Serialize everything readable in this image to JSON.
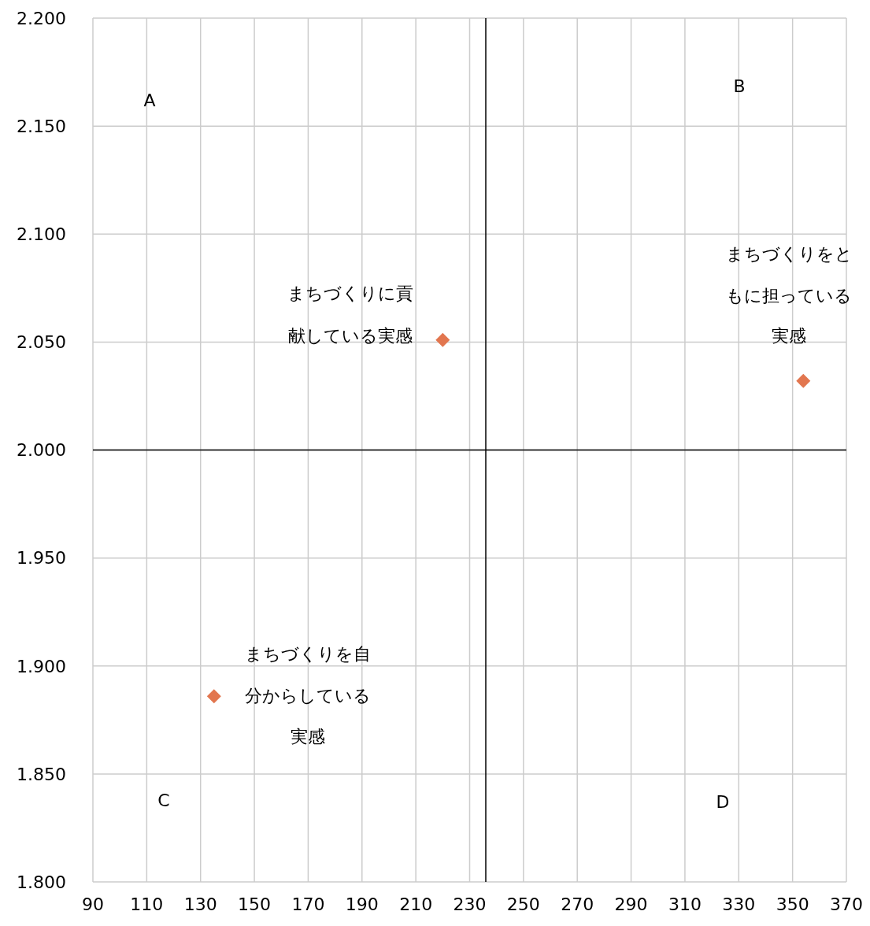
{
  "chart_data": {
    "type": "scatter",
    "marker": "diamond",
    "legend": false,
    "grid": true,
    "xlim": [
      90,
      370
    ],
    "xticks": [
      90,
      110,
      130,
      150,
      170,
      190,
      210,
      230,
      250,
      270,
      290,
      310,
      330,
      350,
      370
    ],
    "ylim": [
      1.8,
      2.2
    ],
    "yticks": [
      {
        "value": 1.8,
        "label": "1.800"
      },
      {
        "value": 1.85,
        "label": "1.850"
      },
      {
        "value": 1.9,
        "label": "1.900"
      },
      {
        "value": 1.95,
        "label": "1.950"
      },
      {
        "value": 2.0,
        "label": "2.000"
      },
      {
        "value": 2.05,
        "label": "2.050"
      },
      {
        "value": 2.1,
        "label": "2.100"
      },
      {
        "value": 2.15,
        "label": "2.150"
      },
      {
        "value": 2.2,
        "label": "2.200"
      }
    ],
    "ref_lines": [
      {
        "axis": "x",
        "value": 236,
        "color": "#000000"
      },
      {
        "axis": "y",
        "value": 2.0,
        "color": "#000000"
      }
    ],
    "annotations": [
      "A",
      "B",
      "C",
      "D"
    ],
    "series": [
      {
        "name": "まちづくりに貢献している実感",
        "color": "#e2764f",
        "x": [
          220
        ],
        "values": [
          2.051
        ]
      },
      {
        "name": "まちづくりをともに担っている実感",
        "color": "#e2764f",
        "x": [
          354
        ],
        "values": [
          2.032
        ]
      },
      {
        "name": "まちづくりを自分からしている実感",
        "color": "#e2764f",
        "x": [
          135
        ],
        "values": [
          1.886
        ]
      }
    ]
  }
}
